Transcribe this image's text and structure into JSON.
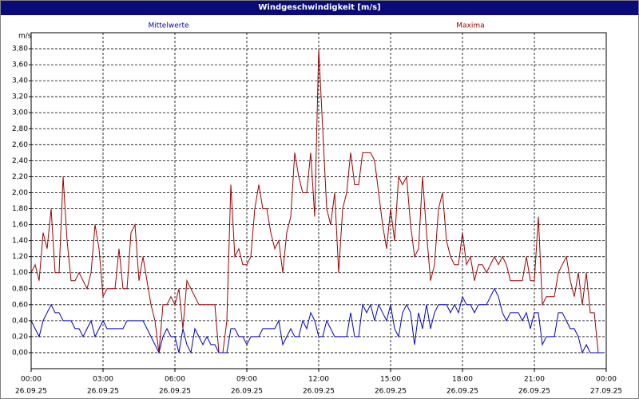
{
  "chart_data": {
    "type": "line",
    "title": "Windgeschwindigkeit [m/s]",
    "y_unit": "m/s",
    "x": [
      0,
      10,
      20,
      30,
      40,
      50,
      60,
      70,
      80,
      90,
      100,
      110,
      120,
      130,
      140,
      150,
      160,
      170,
      180,
      190,
      200,
      210,
      220,
      230,
      240,
      250,
      260,
      270,
      280,
      290,
      300,
      310,
      320,
      330,
      340,
      350,
      360,
      370,
      380,
      390,
      400,
      410,
      420,
      430,
      440,
      450,
      460,
      470,
      480,
      490,
      500,
      510,
      520,
      530,
      540,
      550,
      560,
      570,
      580,
      590,
      600,
      610,
      620,
      630,
      640,
      650,
      660,
      670,
      680,
      690,
      700,
      710,
      720,
      730,
      740,
      750,
      760,
      770,
      780,
      790,
      800,
      810,
      820,
      830,
      840,
      850,
      860,
      870,
      880,
      890,
      900,
      910,
      920,
      930,
      940,
      950,
      960,
      970,
      980,
      990,
      1000,
      1010,
      1020,
      1030,
      1040,
      1050,
      1060,
      1070,
      1080,
      1090,
      1100,
      1110,
      1120,
      1130,
      1140,
      1150,
      1160,
      1170,
      1180,
      1190,
      1200,
      1210,
      1220,
      1230,
      1240,
      1250,
      1260,
      1270,
      1280,
      1290,
      1300,
      1310,
      1320,
      1330,
      1340,
      1350,
      1360,
      1370,
      1380,
      1390,
      1400,
      1410,
      1420,
      1430
    ],
    "series": [
      {
        "name": "Mittelwerte",
        "color": "#0000c8",
        "values": [
          0.4,
          0.3,
          0.2,
          0.4,
          0.5,
          0.6,
          0.5,
          0.5,
          0.4,
          0.4,
          0.4,
          0.3,
          0.3,
          0.2,
          0.3,
          0.4,
          0.2,
          0.3,
          0.4,
          0.3,
          0.3,
          0.3,
          0.3,
          0.3,
          0.4,
          0.4,
          0.4,
          0.4,
          0.4,
          0.3,
          0.2,
          0.1,
          0,
          0.2,
          0.3,
          0.2,
          0.2,
          0,
          0.3,
          0.1,
          0,
          0.3,
          0.2,
          0.1,
          0.2,
          0.1,
          0.1,
          0,
          0,
          0,
          0.3,
          0.3,
          0.2,
          0.2,
          0.1,
          0.2,
          0.2,
          0.2,
          0.3,
          0.3,
          0.3,
          0.3,
          0.4,
          0.1,
          0.2,
          0.3,
          0.2,
          0.2,
          0.4,
          0.3,
          0.5,
          0.4,
          0.2,
          0.2,
          0.4,
          0.3,
          0.2,
          0.2,
          0.2,
          0.2,
          0.5,
          0.2,
          0.2,
          0.6,
          0.5,
          0.6,
          0.4,
          0.6,
          0.5,
          0.4,
          0.6,
          0.3,
          0.2,
          0.5,
          0.6,
          0.5,
          0.1,
          0.5,
          0.3,
          0.6,
          0.3,
          0.5,
          0.6,
          0.6,
          0.6,
          0.5,
          0.6,
          0.5,
          0.7,
          0.6,
          0.6,
          0.5,
          0.6,
          0.6,
          0.6,
          0.7,
          0.8,
          0.7,
          0.5,
          0.4,
          0.5,
          0.5,
          0.5,
          0.4,
          0.5,
          0.3,
          0.5,
          0.5,
          0.1,
          0.2,
          0.2,
          0.2,
          0.5,
          0.5,
          0.4,
          0.3,
          0.3,
          0.2,
          0,
          0.1,
          0,
          0,
          0,
          0
        ]
      },
      {
        "name": "Maxima",
        "color": "#a00000",
        "values": [
          1.0,
          1.1,
          0.9,
          1.5,
          1.3,
          1.8,
          1.0,
          1.0,
          2.2,
          1.4,
          0.9,
          0.9,
          1.0,
          0.9,
          0.8,
          1.0,
          1.6,
          1.3,
          0.7,
          0.8,
          0.8,
          0.8,
          1.3,
          0.8,
          0.8,
          1.5,
          1.6,
          0.9,
          1.2,
          0.9,
          0.6,
          0.4,
          0,
          0.6,
          0.6,
          0.7,
          0.6,
          0.8,
          0.3,
          0.9,
          0.8,
          0.7,
          0.6,
          0.6,
          0.6,
          0.6,
          0.6,
          0,
          0,
          0.4,
          2.1,
          1.2,
          1.3,
          1.1,
          1.1,
          1.2,
          1.8,
          2.1,
          1.8,
          1.8,
          1.5,
          1.3,
          1.4,
          1.0,
          1.5,
          1.7,
          2.5,
          2.2,
          2.0,
          2.0,
          2.5,
          1.7,
          3.8,
          2.8,
          1.8,
          1.6,
          2.0,
          1.0,
          1.8,
          2.0,
          2.5,
          2.1,
          2.1,
          2.5,
          2.5,
          2.5,
          2.4,
          2.0,
          1.6,
          1.3,
          1.8,
          1.4,
          2.2,
          2.1,
          2.2,
          1.6,
          1.2,
          1.3,
          2.2,
          1.5,
          0.9,
          1.1,
          1.8,
          2.0,
          1.4,
          1.2,
          1.1,
          1.1,
          1.5,
          1.1,
          1.2,
          0.9,
          1.1,
          1.1,
          1.0,
          1.1,
          1.2,
          1.1,
          1.2,
          1.1,
          0.9,
          0.9,
          0.9,
          0.9,
          1.2,
          0.9,
          0.9,
          1.7,
          0.6,
          0.7,
          0.7,
          0.7,
          1.0,
          1.1,
          1.2,
          0.9,
          0.7,
          1.0,
          0.6,
          1.0,
          0.5,
          0.5,
          0,
          0
        ]
      }
    ],
    "xlim": [
      0,
      1440
    ],
    "xticks": [
      {
        "value": 0,
        "label": "00:00"
      },
      {
        "value": 180,
        "label": "03:00"
      },
      {
        "value": 360,
        "label": "06:00"
      },
      {
        "value": 540,
        "label": "09:00"
      },
      {
        "value": 720,
        "label": "12:00"
      },
      {
        "value": 900,
        "label": "15:00"
      },
      {
        "value": 1080,
        "label": "18:00"
      },
      {
        "value": 1260,
        "label": "21:00"
      },
      {
        "value": 1440,
        "label": "00:00"
      }
    ],
    "xtick_dates": [
      "26.09.25",
      "26.09.25",
      "26.09.25",
      "26.09.25",
      "26.09.25",
      "26.09.25",
      "26.09.25",
      "26.09.25",
      "27.09.25"
    ],
    "ylim": [
      -0.2,
      4.0
    ],
    "yticks": [
      {
        "value": 0,
        "label": "0,00"
      },
      {
        "value": 0.2,
        "label": "0,20"
      },
      {
        "value": 0.4,
        "label": "0,40"
      },
      {
        "value": 0.6,
        "label": "0,60"
      },
      {
        "value": 0.8,
        "label": "0,80"
      },
      {
        "value": 1.0,
        "label": "1,00"
      },
      {
        "value": 1.2,
        "label": "1,20"
      },
      {
        "value": 1.4,
        "label": "1,40"
      },
      {
        "value": 1.6,
        "label": "1,60"
      },
      {
        "value": 1.8,
        "label": "1,80"
      },
      {
        "value": 2.0,
        "label": "2,00"
      },
      {
        "value": 2.2,
        "label": "2,20"
      },
      {
        "value": 2.4,
        "label": "2,40"
      },
      {
        "value": 2.6,
        "label": "2,60"
      },
      {
        "value": 2.8,
        "label": "2,80"
      },
      {
        "value": 3.0,
        "label": "3,00"
      },
      {
        "value": 3.2,
        "label": "3,20"
      },
      {
        "value": 3.4,
        "label": "3,40"
      },
      {
        "value": 3.6,
        "label": "3,60"
      },
      {
        "value": 3.8,
        "label": "3,80"
      }
    ],
    "grid": true
  }
}
